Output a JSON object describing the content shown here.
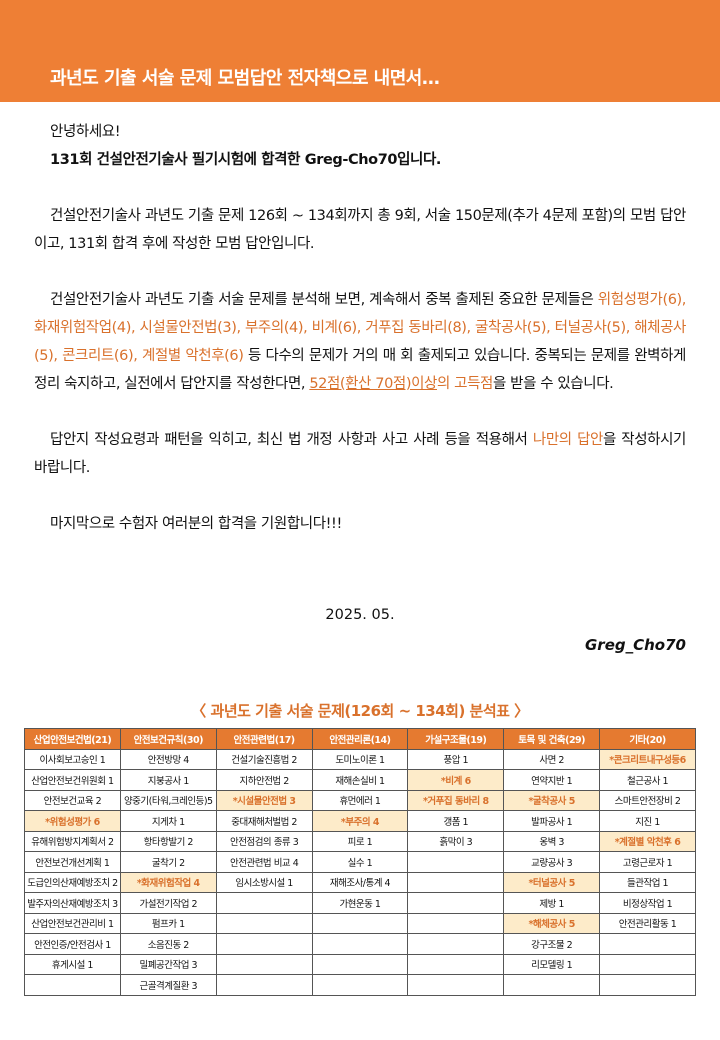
{
  "banner": {
    "title": "과년도 기출 서술 문제 모범답안 전자책으로 내면서…"
  },
  "intro": {
    "greeting": "안녕하세요!",
    "line2": "131회 건설안전기술사 필기시험에 합격한 Greg-Cho70입니다."
  },
  "para1": "건설안전기술사 과년도 기출 문제 126회 ~ 134회까지 총 9회, 서술 150문제(추가 4문제 포함)의 모범 답안이고, 131회 합격 후에 작성한 모범 답안입니다.",
  "para2": {
    "a": "건설안전기술사 과년도 기출 서술 문제를 분석해 보면, 계속해서 중복 출제된 중요한 문제들은 ",
    "topics": "위험성평가(6), 화재위험작업(4), 시설물안전법(3), 부주의(4), 비계(6), 거푸집 동바리(8), 굴착공사(5), 터널공사(5), 해체공사(5), 콘크리트(6), 계절별 악천후(6)",
    "b": " 등 다수의 문제가 거의 매 회 출제되고 있습니다. 중복되는 문제를 완벽하게 정리 숙지하고, 실전에서 답안지를 작성한다면, ",
    "score": "52점(환산 70점)이상",
    "c": "의 고득점",
    "d": "을 받을 수 있습니다."
  },
  "para3": {
    "a": "답안지 작성요령과 패턴을 익히고, 최신 법 개정 사항과 사고 사례 등을 적용해서 ",
    "b": "나만의 답안",
    "c": "을 작성하시기 바랍니다."
  },
  "para4": "마지막으로 수험자 여러분의 합격을 기원합니다!!!",
  "date": "2025. 05.",
  "signature": "Greg_Cho70",
  "table": {
    "title": "〈 과년도 기출 서술 문제(126회 ~ 134회) 분석표 〉",
    "headers": [
      "산업안전보건법(21)",
      "안전보건규칙(30)",
      "안전관련법(17)",
      "안전관리론(14)",
      "가설구조물(19)",
      "토목 및 건축(29)",
      "기타(20)"
    ],
    "rows": [
      [
        "이사회보고승인 1",
        "안전방망 4",
        "건설기술진흥법 2",
        "도미노이론 1",
        "풍압 1",
        "사면 2",
        "*콘크리트내구성등6"
      ],
      [
        "산업안전보건위원회 1",
        "지붕공사 1",
        "지하안전법 2",
        "재해손실비 1",
        "*비계 6",
        "연약지반 1",
        "철근공사 1"
      ],
      [
        "안전보건교육 2",
        "양중기(타워,크레인등)5",
        "*시설물안전법 3",
        "휴먼에러 1",
        "*거푸집 동바리 8",
        "*굴착공사 5",
        "스마트안전장비 2"
      ],
      [
        "*위험성평가 6",
        "지게차 1",
        "중대재해처벌법 2",
        "*부주의 4",
        "갱폼 1",
        "발파공사 1",
        "지진 1"
      ],
      [
        "유해위험방지계획서 2",
        "항타항발기 2",
        "안전점검의 종류 3",
        "피로 1",
        "흙막이 3",
        "옹벽 3",
        "*계절별 악천후 6"
      ],
      [
        "안전보건개선계획 1",
        "굴착기 2",
        "안전관련법 비교 4",
        "실수 1",
        "",
        "교량공사 3",
        "고령근로자 1"
      ],
      [
        "도급인의산재예방조치 2",
        "*화재위험작업 4",
        "임시소방시설 1",
        "재해조사/통계 4",
        "",
        "*터널공사 5",
        "들관작업 1"
      ],
      [
        "발주자의산재예방조치 3",
        "가설전기작업 2",
        "",
        "가현운동 1",
        "",
        "제방 1",
        "비정상작업 1"
      ],
      [
        "산업안전보건관리비 1",
        "펌프카 1",
        "",
        "",
        "",
        "*해체공사 5",
        "안전관리활동 1"
      ],
      [
        "안전인증/안전검사 1",
        "소음진동 2",
        "",
        "",
        "",
        "강구조물 2",
        ""
      ],
      [
        "휴게시설 1",
        "밀폐공간작업 3",
        "",
        "",
        "",
        "리모델링 1",
        ""
      ],
      [
        "",
        "근골격계질환 3",
        "",
        "",
        "",
        "",
        ""
      ]
    ]
  },
  "colors": {
    "accent": "#ee7f35",
    "highlight_bg": "#fdebc9",
    "highlight_text": "#d9712c"
  }
}
